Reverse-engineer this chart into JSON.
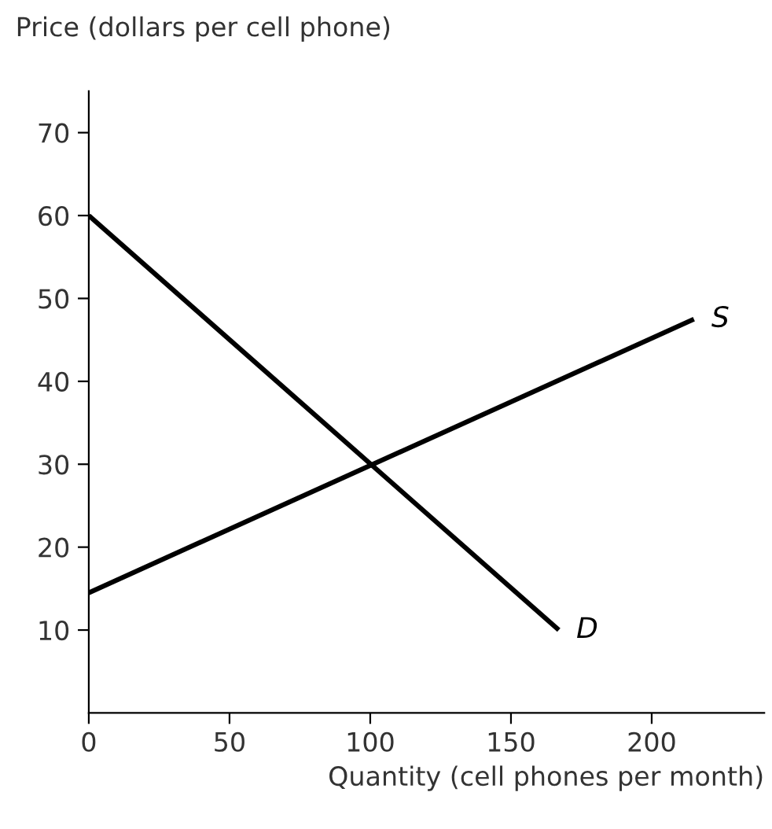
{
  "chart_data": {
    "type": "line",
    "xlabel": "Quantity (cell phones per month)",
    "ylabel": "Price (dollars per cell phone)",
    "series": [
      {
        "name": "D",
        "color": "#000000",
        "x": [
          0,
          167
        ],
        "values": [
          60,
          10
        ]
      },
      {
        "name": "S",
        "color": "#000000",
        "x": [
          0,
          215
        ],
        "values": [
          14.5,
          47.5
        ]
      }
    ],
    "xlim": [
      0,
      240
    ],
    "ylim": [
      0,
      75
    ],
    "xticks": [
      0,
      50,
      100,
      150,
      200
    ],
    "yticks": [
      10,
      20,
      30,
      40,
      50,
      60,
      70
    ],
    "grid": false,
    "legend": false,
    "marker": "none",
    "line_style": "solid"
  }
}
